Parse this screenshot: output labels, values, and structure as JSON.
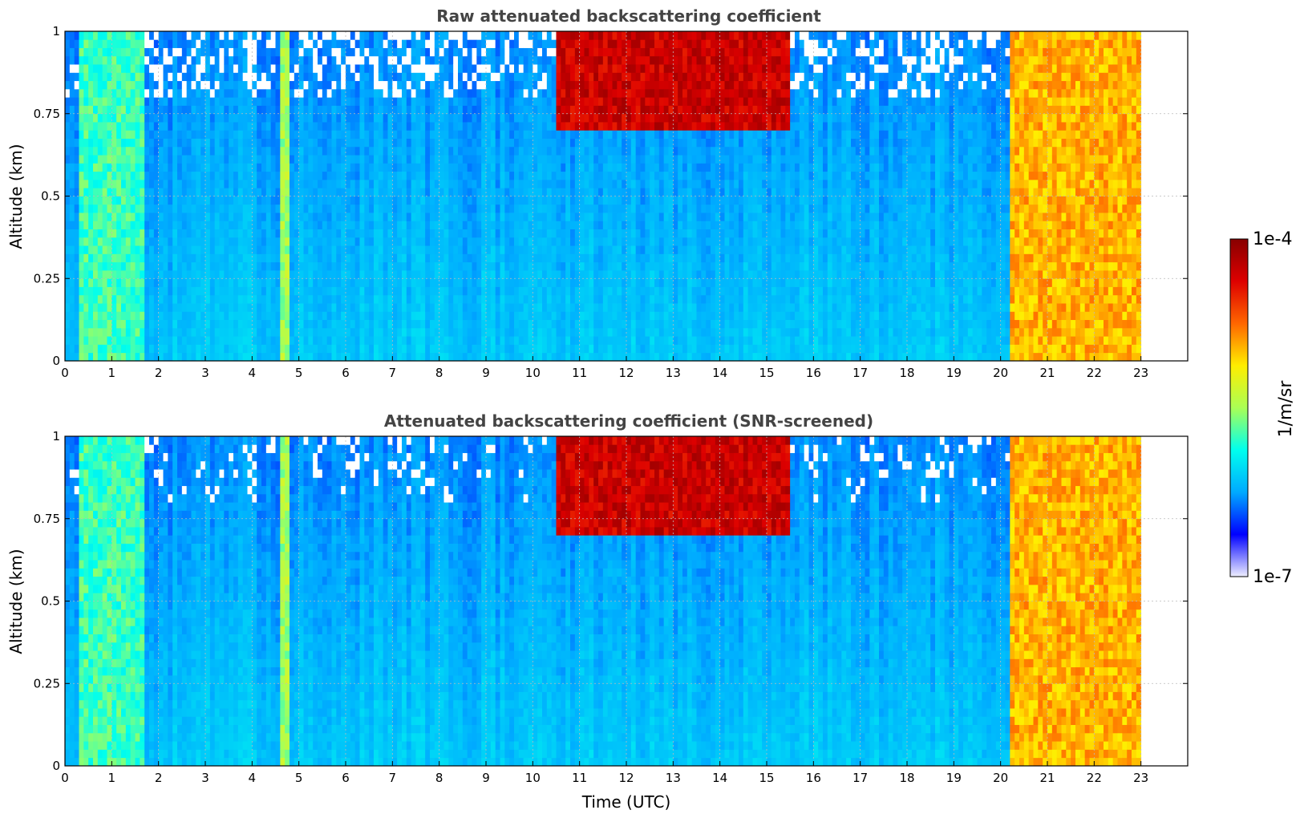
{
  "chart_data": [
    {
      "type": "heatmap",
      "title": "Raw attenuated backscattering coefficient",
      "xlabel": "",
      "ylabel": "Altitude (km)",
      "xlim": [
        0,
        24
      ],
      "ylim": [
        0,
        1
      ],
      "xticks": [
        "0",
        "1",
        "2",
        "3",
        "4",
        "5",
        "6",
        "7",
        "8",
        "9",
        "10",
        "11",
        "12",
        "13",
        "14",
        "15",
        "16",
        "17",
        "18",
        "19",
        "20",
        "21",
        "22",
        "23"
      ],
      "yticks": [
        "0",
        "0.25",
        "0.5",
        "0.75",
        "1"
      ],
      "grid": true,
      "data_extent_hours": [
        0,
        23
      ],
      "screened": false,
      "features": [
        {
          "t_start": 0.3,
          "t_end": 1.7,
          "level": 0.42
        },
        {
          "t_start": 4.6,
          "t_end": 4.8,
          "level": 0.5
        },
        {
          "t_start": 20.2,
          "t_end": 23.0,
          "level": 0.68
        },
        {
          "t_start": 10.5,
          "t_end": 15.5,
          "level": 0.9,
          "alt_min": 0.7
        }
      ]
    },
    {
      "type": "heatmap",
      "title": "Attenuated backscattering coefficient (SNR-screened)",
      "xlabel": "Time (UTC)",
      "ylabel": "Altitude (km)",
      "xlim": [
        0,
        24
      ],
      "ylim": [
        0,
        1
      ],
      "xticks": [
        "0",
        "1",
        "2",
        "3",
        "4",
        "5",
        "6",
        "7",
        "8",
        "9",
        "10",
        "11",
        "12",
        "13",
        "14",
        "15",
        "16",
        "17",
        "18",
        "19",
        "20",
        "21",
        "22",
        "23"
      ],
      "yticks": [
        "0",
        "0.25",
        "0.5",
        "0.75",
        "1"
      ],
      "grid": true,
      "data_extent_hours": [
        0,
        23
      ],
      "screened": true,
      "features": [
        {
          "t_start": 0.3,
          "t_end": 1.7,
          "level": 0.42
        },
        {
          "t_start": 4.6,
          "t_end": 4.8,
          "level": 0.5
        },
        {
          "t_start": 20.2,
          "t_end": 23.0,
          "level": 0.68
        },
        {
          "t_start": 10.5,
          "t_end": 15.5,
          "level": 0.9,
          "alt_min": 0.7
        }
      ]
    }
  ],
  "colorbar": {
    "label": "1/m/sr",
    "max_label": "1e-4",
    "min_label": "1e-7",
    "colors": [
      "#eeeeff",
      "#0000ff",
      "#00aaff",
      "#00ffee",
      "#aaff55",
      "#ffee00",
      "#ff6600",
      "#dd0000",
      "#880000"
    ]
  }
}
